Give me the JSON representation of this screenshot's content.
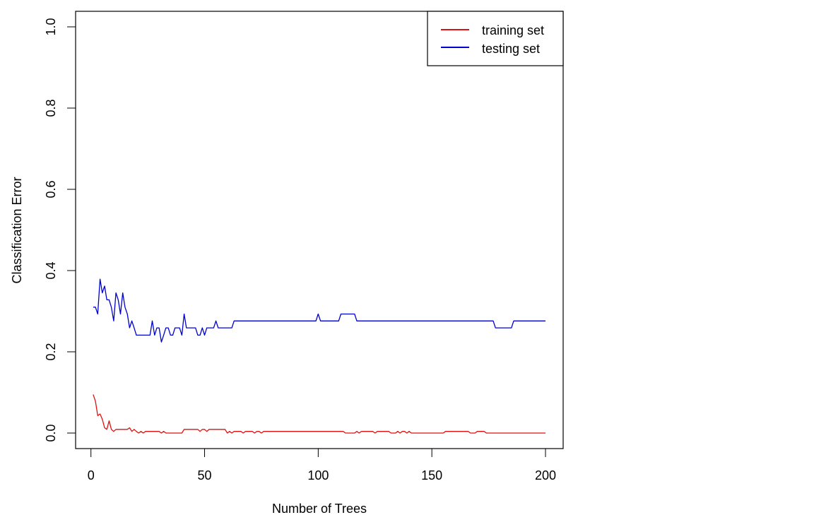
{
  "chart_data": {
    "type": "line",
    "title": "",
    "xlabel": "Number of Trees",
    "ylabel": "Classification Error",
    "xlim": [
      0,
      200
    ],
    "ylim": [
      0,
      1.0
    ],
    "x_ticks": [
      "0",
      "50",
      "100",
      "150",
      "200"
    ],
    "x_tick_values": [
      0,
      50,
      100,
      150,
      200
    ],
    "y_ticks": [
      "0.0",
      "0.2",
      "0.4",
      "0.6",
      "0.8",
      "1.0"
    ],
    "y_tick_values": [
      0.0,
      0.2,
      0.4,
      0.6,
      0.8,
      1.0
    ],
    "grid": false,
    "legend_position": "top-right",
    "x_start": 1,
    "x_end": 200,
    "series": [
      {
        "name": "training set",
        "color": "#dd1111",
        "values": [
          0.095,
          0.078,
          0.043,
          0.047,
          0.034,
          0.013,
          0.009,
          0.03,
          0.009,
          0.004,
          0.009,
          0.009,
          0.009,
          0.009,
          0.009,
          0.009,
          0.013,
          0.004,
          0.009,
          0.004,
          0.0,
          0.004,
          0.0,
          0.004,
          0.004,
          0.004,
          0.004,
          0.004,
          0.004,
          0.004,
          0.0,
          0.004,
          0.0,
          0.0,
          0.0,
          0.0,
          0.0,
          0.0,
          0.0,
          0.0,
          0.009,
          0.009,
          0.009,
          0.009,
          0.009,
          0.009,
          0.009,
          0.004,
          0.009,
          0.009,
          0.004,
          0.009,
          0.009,
          0.009,
          0.009,
          0.009,
          0.009,
          0.009,
          0.009,
          0.0,
          0.004,
          0.0,
          0.004,
          0.004,
          0.004,
          0.004,
          0.0,
          0.004,
          0.004,
          0.004,
          0.004,
          0.0,
          0.004,
          0.004,
          0.0,
          0.004,
          0.004,
          0.004,
          0.004,
          0.004,
          0.004,
          0.004,
          0.004,
          0.004,
          0.004,
          0.004,
          0.004,
          0.004,
          0.004,
          0.004,
          0.004,
          0.004,
          0.004,
          0.004,
          0.004,
          0.004,
          0.004,
          0.004,
          0.004,
          0.004,
          0.004,
          0.004,
          0.004,
          0.004,
          0.004,
          0.004,
          0.004,
          0.004,
          0.004,
          0.004,
          0.004,
          0.0,
          0.0,
          0.0,
          0.0,
          0.0,
          0.004,
          0.0,
          0.004,
          0.004,
          0.004,
          0.004,
          0.004,
          0.004,
          0.0,
          0.004,
          0.004,
          0.004,
          0.004,
          0.004,
          0.004,
          0.0,
          0.0,
          0.0,
          0.004,
          0.0,
          0.004,
          0.004,
          0.0,
          0.004,
          0.0,
          0.0,
          0.0,
          0.0,
          0.0,
          0.0,
          0.0,
          0.0,
          0.0,
          0.0,
          0.0,
          0.0,
          0.0,
          0.0,
          0.0,
          0.004,
          0.004,
          0.004,
          0.004,
          0.004,
          0.004,
          0.004,
          0.004,
          0.004,
          0.004,
          0.004,
          0.0,
          0.0,
          0.0,
          0.004,
          0.004,
          0.004,
          0.004,
          0.0,
          0.0,
          0.0,
          0.0,
          0.0,
          0.0,
          0.0,
          0.0,
          0.0,
          0.0,
          0.0,
          0.0,
          0.0,
          0.0,
          0.0,
          0.0,
          0.0,
          0.0,
          0.0,
          0.0,
          0.0,
          0.0,
          0.0,
          0.0,
          0.0,
          0.0,
          0.0
        ]
      },
      {
        "name": "testing set",
        "color": "#0000cc",
        "values": [
          0.31,
          0.31,
          0.293,
          0.379,
          0.345,
          0.362,
          0.328,
          0.328,
          0.31,
          0.276,
          0.345,
          0.328,
          0.293,
          0.345,
          0.31,
          0.293,
          0.259,
          0.276,
          0.259,
          0.241,
          0.241,
          0.241,
          0.241,
          0.241,
          0.241,
          0.241,
          0.276,
          0.241,
          0.259,
          0.259,
          0.224,
          0.241,
          0.259,
          0.259,
          0.241,
          0.241,
          0.259,
          0.259,
          0.259,
          0.241,
          0.293,
          0.259,
          0.259,
          0.259,
          0.259,
          0.259,
          0.241,
          0.241,
          0.259,
          0.241,
          0.259,
          0.259,
          0.259,
          0.259,
          0.276,
          0.259,
          0.259,
          0.259,
          0.259,
          0.259,
          0.259,
          0.259,
          0.276,
          0.276,
          0.276,
          0.276,
          0.276,
          0.276,
          0.276,
          0.276,
          0.276,
          0.276,
          0.276,
          0.276,
          0.276,
          0.276,
          0.276,
          0.276,
          0.276,
          0.276,
          0.276,
          0.276,
          0.276,
          0.276,
          0.276,
          0.276,
          0.276,
          0.276,
          0.276,
          0.276,
          0.276,
          0.276,
          0.276,
          0.276,
          0.276,
          0.276,
          0.276,
          0.276,
          0.276,
          0.293,
          0.276,
          0.276,
          0.276,
          0.276,
          0.276,
          0.276,
          0.276,
          0.276,
          0.276,
          0.293,
          0.293,
          0.293,
          0.293,
          0.293,
          0.293,
          0.293,
          0.276,
          0.276,
          0.276,
          0.276,
          0.276,
          0.276,
          0.276,
          0.276,
          0.276,
          0.276,
          0.276,
          0.276,
          0.276,
          0.276,
          0.276,
          0.276,
          0.276,
          0.276,
          0.276,
          0.276,
          0.276,
          0.276,
          0.276,
          0.276,
          0.276,
          0.276,
          0.276,
          0.276,
          0.276,
          0.276,
          0.276,
          0.276,
          0.276,
          0.276,
          0.276,
          0.276,
          0.276,
          0.276,
          0.276,
          0.276,
          0.276,
          0.276,
          0.276,
          0.276,
          0.276,
          0.276,
          0.276,
          0.276,
          0.276,
          0.276,
          0.276,
          0.276,
          0.276,
          0.276,
          0.276,
          0.276,
          0.276,
          0.276,
          0.276,
          0.276,
          0.276,
          0.259,
          0.259,
          0.259,
          0.259,
          0.259,
          0.259,
          0.259,
          0.259,
          0.276,
          0.276,
          0.276,
          0.276,
          0.276,
          0.276,
          0.276,
          0.276,
          0.276,
          0.276,
          0.276,
          0.276,
          0.276,
          0.276,
          0.276
        ]
      }
    ]
  },
  "legend": {
    "items": [
      {
        "label": "training set",
        "color": "#dd1111"
      },
      {
        "label": "testing set",
        "color": "#0000cc"
      }
    ]
  }
}
